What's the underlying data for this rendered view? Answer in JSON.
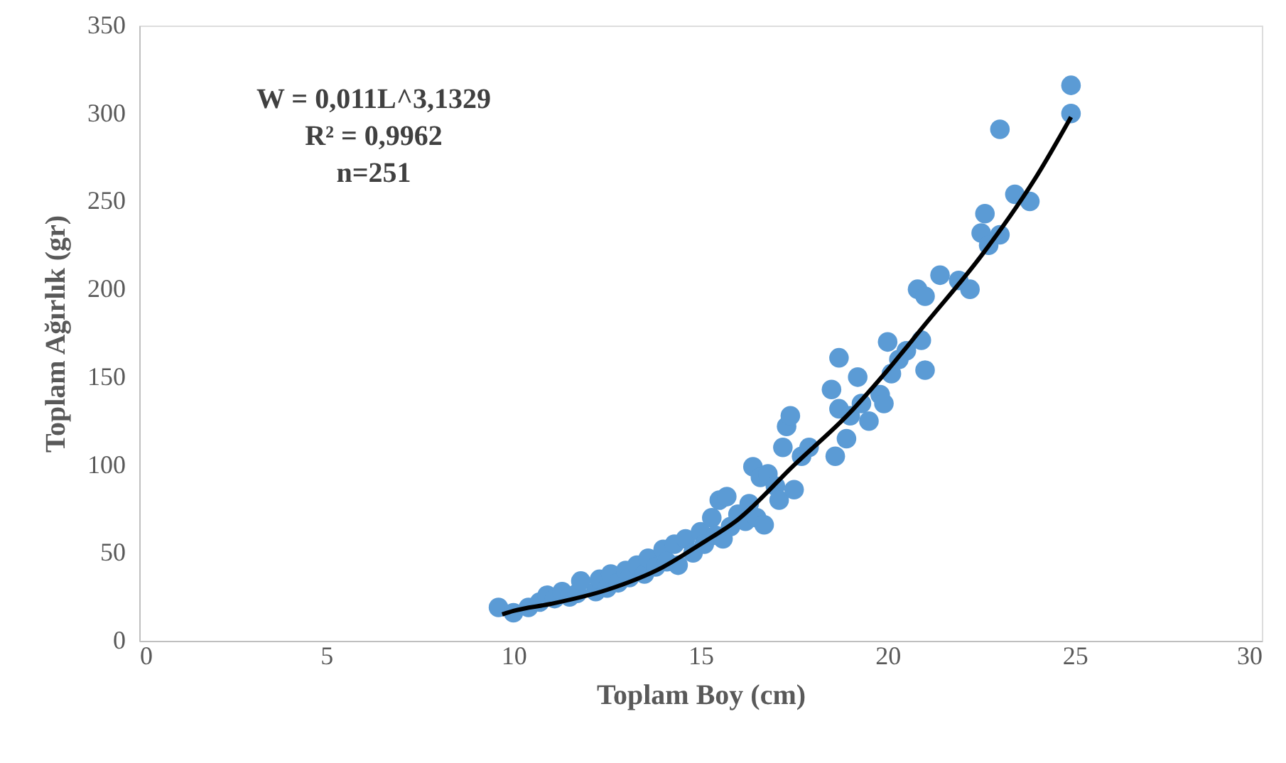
{
  "chart_data": {
    "type": "scatter",
    "xlabel": "Toplam Boy (cm)",
    "ylabel": "Toplam Ağırlık (gr)",
    "xlim": [
      0,
      30
    ],
    "xticks": [
      0,
      5,
      10,
      15,
      20,
      25,
      30
    ],
    "ylim": [
      0,
      350
    ],
    "yticks": [
      0,
      50,
      100,
      150,
      200,
      250,
      300,
      350
    ],
    "grid": false,
    "marker": "circle",
    "annotations": [
      "W = 0,011L^3,1329",
      "R² = 0,9962",
      "n=251"
    ],
    "series": [
      {
        "color": "#5b9bd5",
        "x": [
          9.6,
          10,
          10.4,
          10.7,
          10.9,
          11.1,
          11.3,
          11.5,
          11.7,
          11.8,
          12.2,
          12.3,
          12.5,
          12.6,
          12.8,
          13,
          13.1,
          13.3,
          13.5,
          13.6,
          13.8,
          14,
          14.1,
          14.3,
          14.4,
          14.6,
          14.8,
          15,
          15.1,
          15.3,
          15.4,
          15.5,
          15.6,
          15.7,
          15.8,
          16,
          16.2,
          16.3,
          16.4,
          16.5,
          16.6,
          16.7,
          16.8,
          17,
          17.1,
          17.2,
          17.3,
          17.4,
          17.5,
          17.7,
          17.9,
          18.5,
          18.6,
          18.7,
          18.7,
          18.9,
          19,
          19.2,
          19.3,
          19.5,
          19.8,
          19.9,
          20,
          20.1,
          20.3,
          20.5,
          20.8,
          20.9,
          21,
          21,
          21.4,
          21.9,
          22.2,
          22.5,
          22.6,
          22.7,
          23,
          23,
          23.4,
          23.8,
          24.9,
          24.9
        ],
        "values": [
          19,
          16,
          19,
          22,
          26,
          24,
          28,
          25,
          27,
          34,
          28,
          35,
          30,
          38,
          33,
          40,
          36,
          43,
          38,
          47,
          42,
          52,
          45,
          55,
          43,
          58,
          50,
          62,
          55,
          70,
          60,
          80,
          58,
          82,
          65,
          72,
          68,
          78,
          99,
          70,
          93,
          66,
          95,
          88,
          80,
          110,
          122,
          128,
          86,
          105,
          110,
          143,
          105,
          161,
          132,
          115,
          128,
          150,
          135,
          125,
          140,
          135,
          170,
          152,
          160,
          165,
          200,
          171,
          154,
          196,
          208,
          205,
          200,
          232,
          243,
          225,
          291,
          231,
          254,
          250,
          316,
          300
        ]
      },
      {
        "type": "line",
        "marker": "none",
        "color": "#000000",
        "x": [
          9.7,
          10,
          11,
          12.5,
          14,
          15,
          16,
          17.5,
          19,
          20,
          21,
          22.5,
          24,
          24.9
        ],
        "values": [
          15,
          17,
          21,
          29,
          42,
          55,
          69,
          100,
          130,
          154,
          180,
          219,
          265,
          298
        ]
      }
    ]
  }
}
